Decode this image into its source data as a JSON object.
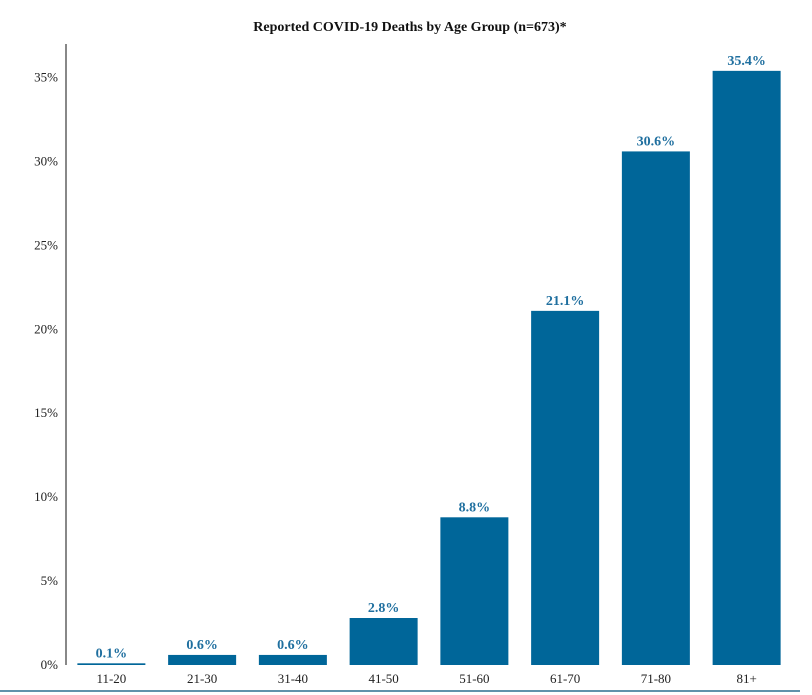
{
  "chart_data": {
    "type": "bar",
    "title": "Reported COVID-19 Deaths by Age Group (n=673)*",
    "xlabel": "",
    "ylabel": "",
    "categories": [
      "11-20",
      "21-30",
      "31-40",
      "41-50",
      "51-60",
      "61-70",
      "71-80",
      "81+"
    ],
    "values": [
      0.1,
      0.6,
      0.6,
      2.8,
      8.8,
      21.1,
      30.6,
      35.4
    ],
    "data_labels": [
      "0.1%",
      "0.6%",
      "0.6%",
      "2.8%",
      "8.8%",
      "21.1%",
      "30.6%",
      "35.4%"
    ],
    "y_ticks": [
      0,
      5,
      10,
      15,
      20,
      25,
      30,
      35
    ],
    "y_tick_labels": [
      "0%",
      "5%",
      "10%",
      "15%",
      "20%",
      "25%",
      "30%",
      "35%"
    ],
    "ylim": [
      0,
      37
    ],
    "grid": false,
    "legend": "none",
    "colors": {
      "bar": "#006699",
      "label": "#1f6f9f",
      "baseline": "#2a6f8f",
      "axis": "#111111"
    }
  }
}
